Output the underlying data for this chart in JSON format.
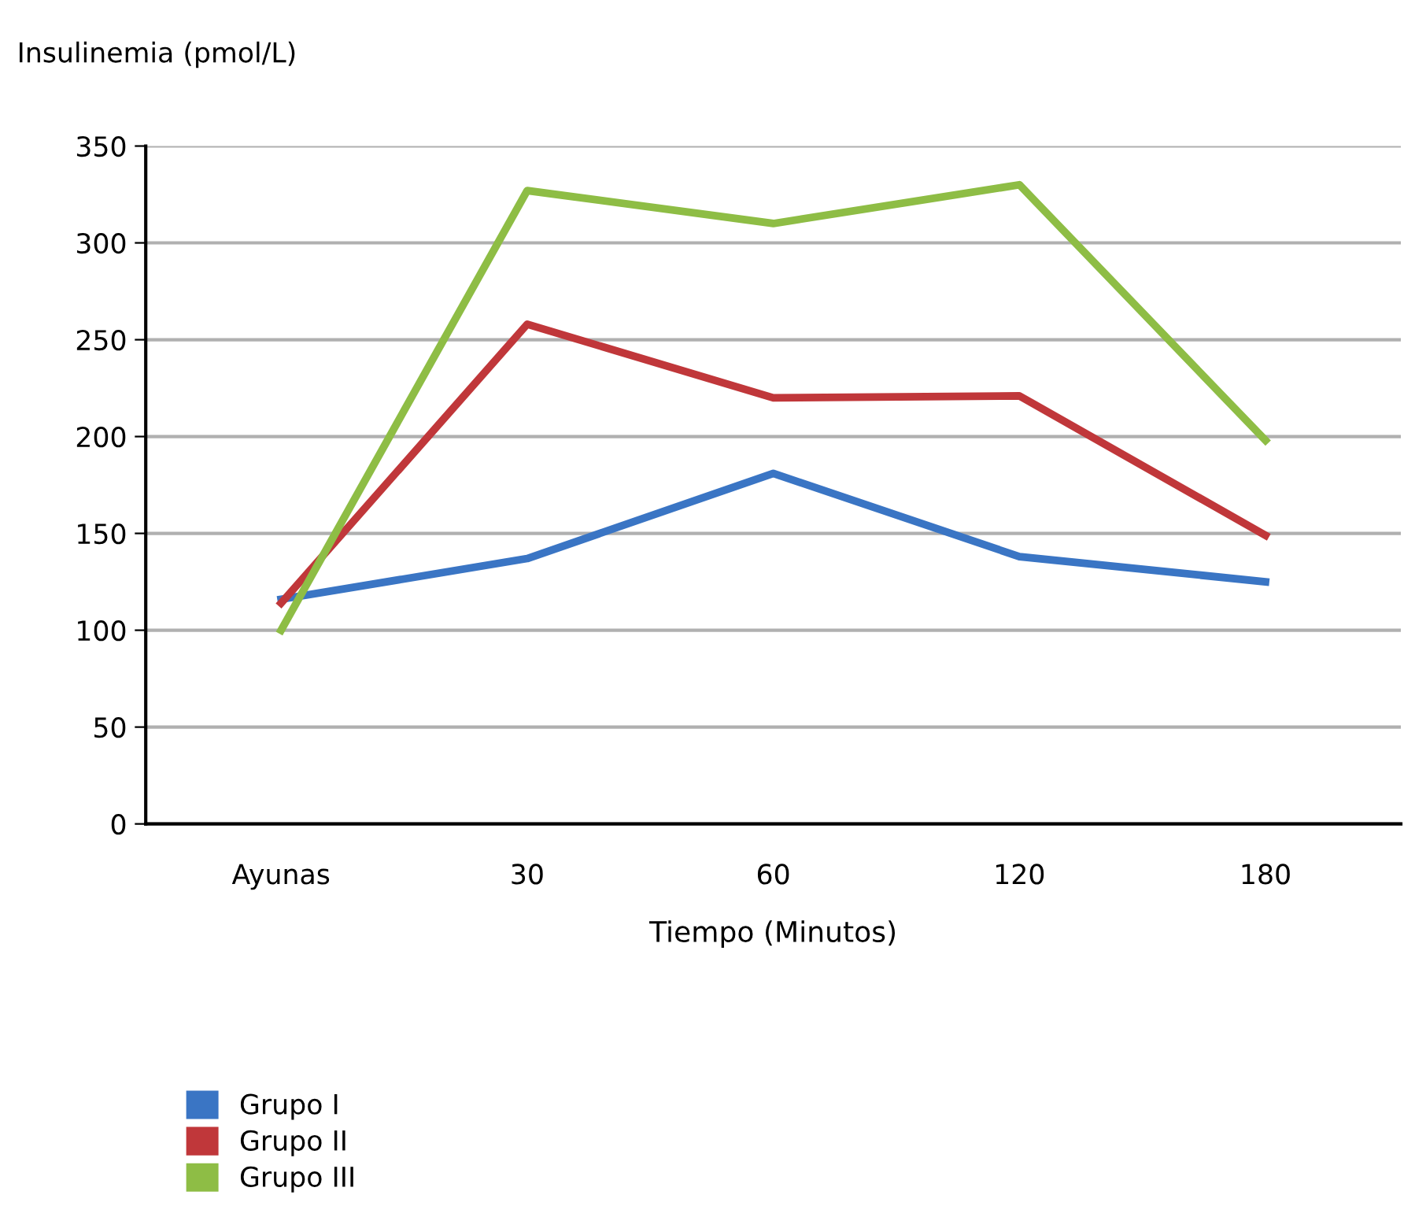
{
  "chart_data": {
    "type": "line",
    "ylabel": "Insulinemia (pmol/L)",
    "xlabel": "Tiempo (Minutos)",
    "categories": [
      "Ayunas",
      "30",
      "60",
      "120",
      "180"
    ],
    "series": [
      {
        "name": "Grupo I",
        "color": "#3a75c4",
        "values": [
          116,
          137,
          181,
          138,
          125
        ]
      },
      {
        "name": "Grupo II",
        "color": "#c0373a",
        "values": [
          114,
          258,
          220,
          221,
          149
        ]
      },
      {
        "name": "Grupo III",
        "color": "#8ebd45",
        "values": [
          100,
          327,
          310,
          330,
          198
        ]
      }
    ],
    "ylim": [
      0,
      350
    ],
    "yticks": [
      0,
      50,
      100,
      150,
      200,
      250,
      300,
      350
    ],
    "grid": "y",
    "legend": "bottom left",
    "marker": "none",
    "line_style": "solid"
  }
}
